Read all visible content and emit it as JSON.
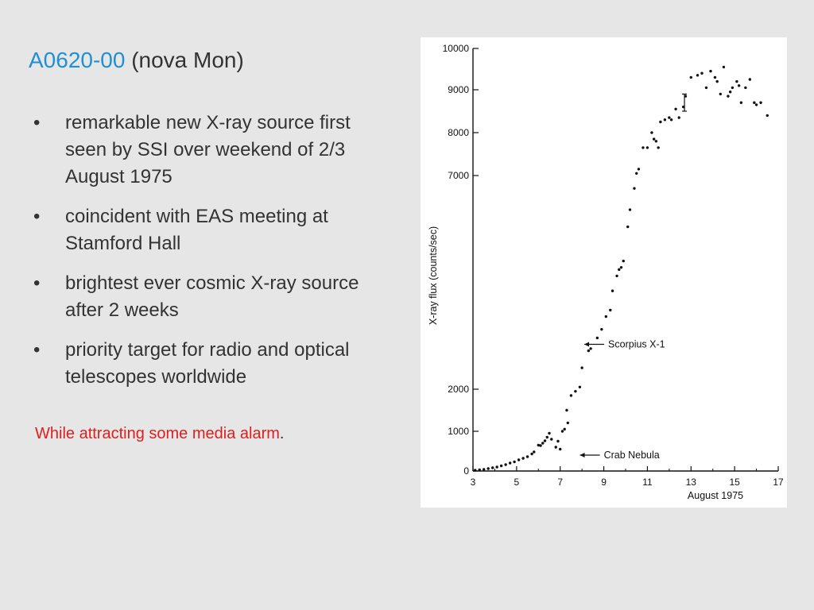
{
  "slide": {
    "title_accent": "A0620-00",
    "title_rest": " (nova Mon)",
    "bullets": [
      "remarkable new X-ray source first seen by SSI over weekend of 2/3 August 1975",
      "coincident with EAS meeting at Stamford Hall",
      "brightest ever cosmic X-ray source after 2 weeks",
      "priority target for radio and optical telescopes worldwide"
    ],
    "bullet_glyph": "•",
    "note_red": "While attracting some media alarm",
    "note_tail": "."
  },
  "colors": {
    "background": "#e6e6e6",
    "accent_blue": "#1f8fd6",
    "alert_red": "#dd1f1f",
    "body_text": "#333333"
  },
  "chart_data": {
    "type": "scatter",
    "title": "",
    "xlabel": "August 1975",
    "ylabel": "X-ray flux (counts/sec)",
    "xlim": [
      3,
      17
    ],
    "ylim": [
      0,
      10000
    ],
    "y_scale": "nonlinear (compressed between 2000 and 7000)",
    "x_ticks": [
      3,
      5,
      7,
      9,
      11,
      13,
      15,
      17
    ],
    "y_ticks": [
      {
        "value": 0,
        "label": "0"
      },
      {
        "value": 1000,
        "label": "1000"
      },
      {
        "value": 2000,
        "label": "2000"
      },
      {
        "value": 7000,
        "label": "7000"
      },
      {
        "value": 8000,
        "label": "8000"
      },
      {
        "value": 9000,
        "label": "9000"
      },
      {
        "value": 10000,
        "label": "10000"
      }
    ],
    "annotations": [
      {
        "label": "Scorpius X-1",
        "x": 9.2,
        "y": 3050,
        "arrow": "left"
      },
      {
        "label": "Crab Nebula",
        "x": 9.0,
        "y": 400,
        "arrow": "left"
      }
    ],
    "points": [
      [
        3.1,
        20
      ],
      [
        3.3,
        30
      ],
      [
        3.5,
        40
      ],
      [
        3.7,
        60
      ],
      [
        3.9,
        80
      ],
      [
        4.1,
        100
      ],
      [
        4.3,
        130
      ],
      [
        4.5,
        160
      ],
      [
        4.7,
        200
      ],
      [
        4.9,
        230
      ],
      [
        5.1,
        280
      ],
      [
        5.3,
        320
      ],
      [
        5.5,
        360
      ],
      [
        5.7,
        430
      ],
      [
        5.8,
        480
      ],
      [
        6.0,
        650
      ],
      [
        6.1,
        640
      ],
      [
        6.2,
        700
      ],
      [
        6.3,
        760
      ],
      [
        6.4,
        850
      ],
      [
        6.5,
        950
      ],
      [
        6.6,
        800
      ],
      [
        6.8,
        600
      ],
      [
        6.9,
        750
      ],
      [
        7.0,
        550
      ],
      [
        7.1,
        1000
      ],
      [
        7.2,
        1050
      ],
      [
        7.3,
        1500
      ],
      [
        7.35,
        1200
      ],
      [
        7.5,
        1850
      ],
      [
        7.7,
        1950
      ],
      [
        7.9,
        2050
      ],
      [
        8.0,
        2500
      ],
      [
        8.3,
        2900
      ],
      [
        8.4,
        2950
      ],
      [
        8.7,
        3200
      ],
      [
        8.9,
        3400
      ],
      [
        9.1,
        3700
      ],
      [
        9.3,
        3850
      ],
      [
        9.4,
        4300
      ],
      [
        9.6,
        4650
      ],
      [
        9.7,
        4800
      ],
      [
        9.8,
        4850
      ],
      [
        9.9,
        5000
      ],
      [
        10.1,
        5800
      ],
      [
        10.2,
        6200
      ],
      [
        10.4,
        6700
      ],
      [
        10.5,
        7050
      ],
      [
        10.6,
        7150
      ],
      [
        10.8,
        7650
      ],
      [
        11.0,
        7650
      ],
      [
        11.2,
        8000
      ],
      [
        11.3,
        7850
      ],
      [
        11.4,
        7800
      ],
      [
        11.5,
        7650
      ],
      [
        11.6,
        8250
      ],
      [
        11.8,
        8300
      ],
      [
        12.0,
        8350
      ],
      [
        12.1,
        8300
      ],
      [
        12.3,
        8550
      ],
      [
        12.45,
        8350
      ],
      [
        12.65,
        8600
      ],
      [
        12.75,
        8850
      ],
      [
        13.0,
        9300
      ],
      [
        13.3,
        9350
      ],
      [
        13.5,
        9400
      ],
      [
        13.7,
        9050
      ],
      [
        13.9,
        9450
      ],
      [
        14.1,
        9300
      ],
      [
        14.2,
        9200
      ],
      [
        14.35,
        8900
      ],
      [
        14.5,
        9550
      ],
      [
        14.7,
        8850
      ],
      [
        14.8,
        8950
      ],
      [
        14.9,
        9050
      ],
      [
        15.1,
        9200
      ],
      [
        15.2,
        9100
      ],
      [
        15.3,
        8700
      ],
      [
        15.5,
        9050
      ],
      [
        15.7,
        9250
      ],
      [
        15.9,
        8700
      ],
      [
        16.0,
        8650
      ],
      [
        16.2,
        8700
      ],
      [
        16.5,
        8400
      ]
    ],
    "error_bars": [
      {
        "x": 12.7,
        "y": 8750,
        "low": 8500,
        "high": 8900
      }
    ]
  }
}
